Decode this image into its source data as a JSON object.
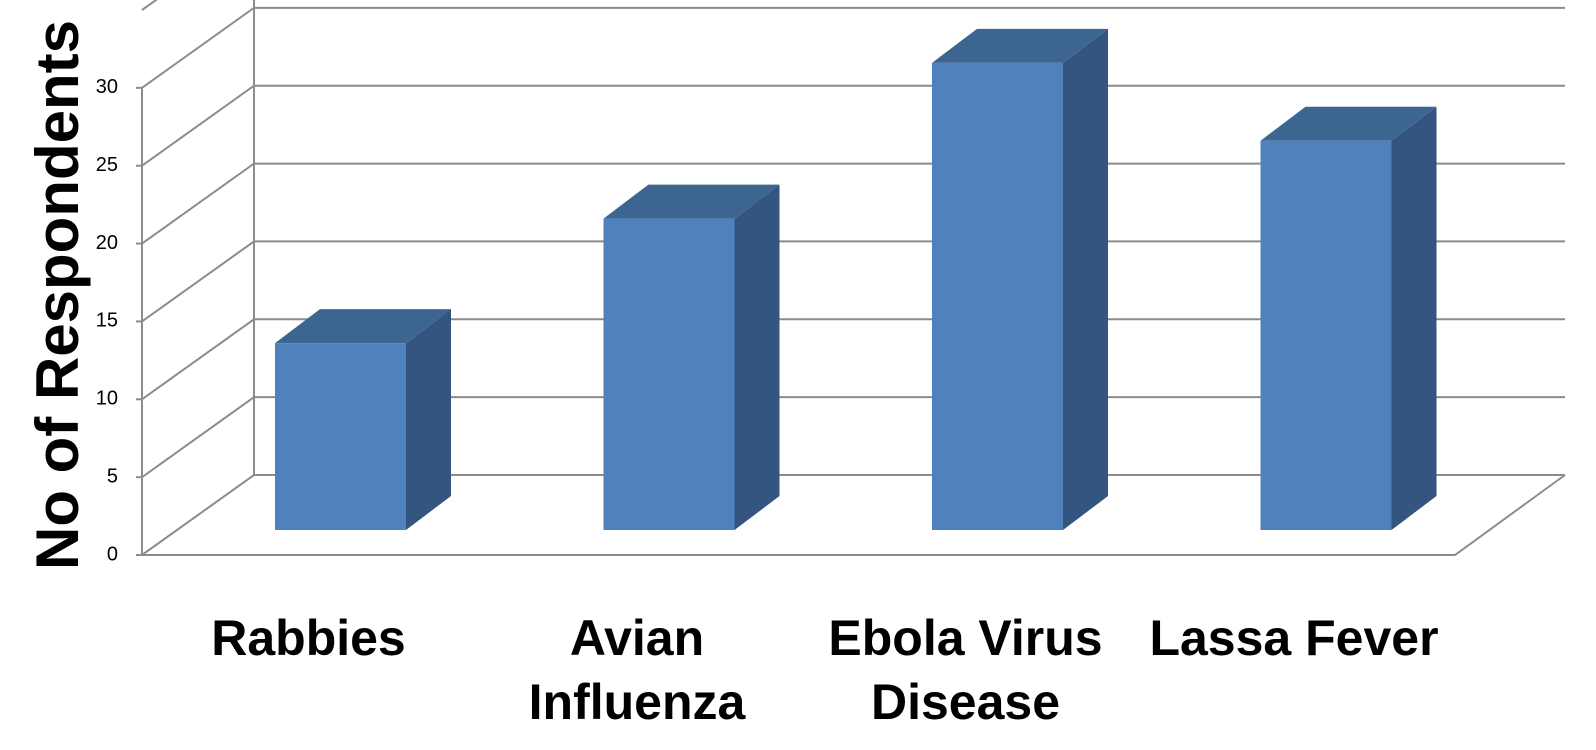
{
  "chart_data": {
    "type": "bar3d",
    "y_label": "No of Respondents",
    "categories": [
      "Rabbies",
      "Avian Influenza",
      "Ebola Virus Disease",
      "Lassa Fever"
    ],
    "values": [
      12,
      20,
      30,
      25
    ],
    "color": "#4f81bd",
    "ylim": [
      0,
      35
    ],
    "yticks": [
      0,
      5,
      10,
      15,
      20,
      25,
      30
    ],
    "grid": true
  }
}
